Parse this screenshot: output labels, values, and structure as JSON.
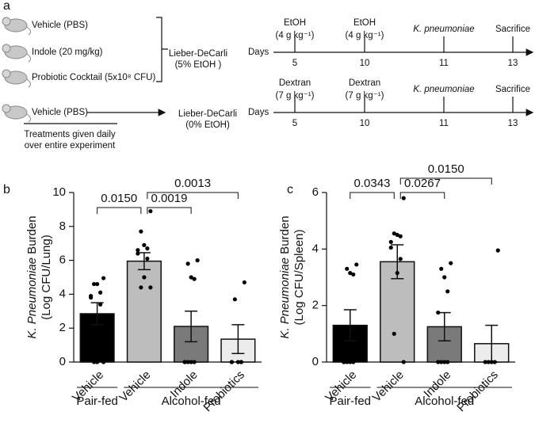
{
  "schematic": {
    "panel": "a",
    "treatments": [
      "Vehicle (PBS)",
      "Indole (20 mg/kg)",
      "Probiotic Cocktail (5x10⁸ CFU)",
      "Vehicle (PBS)"
    ],
    "note": [
      "Treatments given daily",
      "over entire experiment"
    ],
    "diets": [
      [
        "Lieber-DeCarli",
        "(5% EtOH )"
      ],
      [
        "Lieber-DeCarli",
        "(0% EtOH)"
      ]
    ],
    "timelines": [
      {
        "axis_label": "Days",
        "days": [
          5,
          10,
          11,
          13
        ],
        "events": [
          [
            "EtOH",
            "(4 g kg⁻¹)"
          ],
          [
            "EtOH",
            "(4 g kg⁻¹)"
          ],
          [
            "K. pneumoniae"
          ],
          [
            "Sacrifice"
          ]
        ]
      },
      {
        "axis_label": "Days",
        "days": [
          5,
          10,
          11,
          13
        ],
        "events": [
          [
            "Dextran",
            "(7 g kg⁻¹)"
          ],
          [
            "Dextran",
            "(7 g kg⁻¹)"
          ],
          [
            "K. pneumoniae"
          ],
          [
            "Sacrifice"
          ]
        ]
      }
    ]
  },
  "chart_data": [
    {
      "type": "bar",
      "panel": "b",
      "ylabel_italic": "K. Pneumoniae",
      "ylabel": " Burden",
      "ylabel2": "(Log CFU/Lung)",
      "categories": [
        "Vehicle",
        "Vehicle",
        "Indole",
        "Probiotics"
      ],
      "colors": [
        "#000000",
        "#bdbdbd",
        "#7a7a7a",
        "#ececec"
      ],
      "values": [
        2.85,
        5.95,
        2.1,
        1.35
      ],
      "errors": [
        0.65,
        0.5,
        0.9,
        0.85
      ],
      "points": [
        [
          4.95,
          4.6,
          4.6,
          4.1,
          3.9,
          3.8,
          3.4,
          0,
          0,
          0
        ],
        [
          8.9,
          7.7,
          6.9,
          6.7,
          6.6,
          6.4,
          6.1,
          5.0,
          4.4,
          4.4
        ],
        [
          6.0,
          5.8,
          5.0,
          4.9,
          0,
          0,
          0,
          0,
          0
        ],
        [
          4.7,
          3.7,
          0,
          0,
          0,
          0,
          0
        ]
      ],
      "groups": [
        "Pair-fed",
        "Alcohol-fed"
      ],
      "annotations": [
        "0.0150",
        "0.0019",
        "0.0013"
      ],
      "ylim": [
        0,
        10
      ],
      "yticks": [
        0,
        2,
        4,
        6,
        8,
        10
      ]
    },
    {
      "type": "bar",
      "panel": "c",
      "ylabel_italic": "K. Pneumoniae",
      "ylabel": " Burden",
      "ylabel2": "(Log CFU/Spleen)",
      "categories": [
        "Vehicle",
        "Vehicle",
        "Indole",
        "Probiotics"
      ],
      "colors": [
        "#000000",
        "#bdbdbd",
        "#7a7a7a",
        "#ececec"
      ],
      "values": [
        1.3,
        3.55,
        1.25,
        0.65
      ],
      "errors": [
        0.55,
        0.6,
        0.5,
        0.65
      ],
      "points": [
        [
          3.45,
          3.3,
          3.15,
          3.1,
          0,
          0,
          0,
          0,
          0
        ],
        [
          5.8,
          4.55,
          4.5,
          4.45,
          4.25,
          4.05,
          3.65,
          3.15,
          1.0,
          0
        ],
        [
          3.5,
          3.3,
          3.0,
          2.5,
          1.75,
          0,
          0,
          0,
          0
        ],
        [
          3.95,
          0,
          0,
          0,
          0
        ]
      ],
      "groups": [
        "Pair-fed",
        "Alcohol-fed"
      ],
      "annotations": [
        "0.0343",
        "0.0267",
        "0.0150"
      ],
      "ylim": [
        0,
        6
      ],
      "yticks": [
        0,
        2,
        4,
        6
      ]
    }
  ]
}
